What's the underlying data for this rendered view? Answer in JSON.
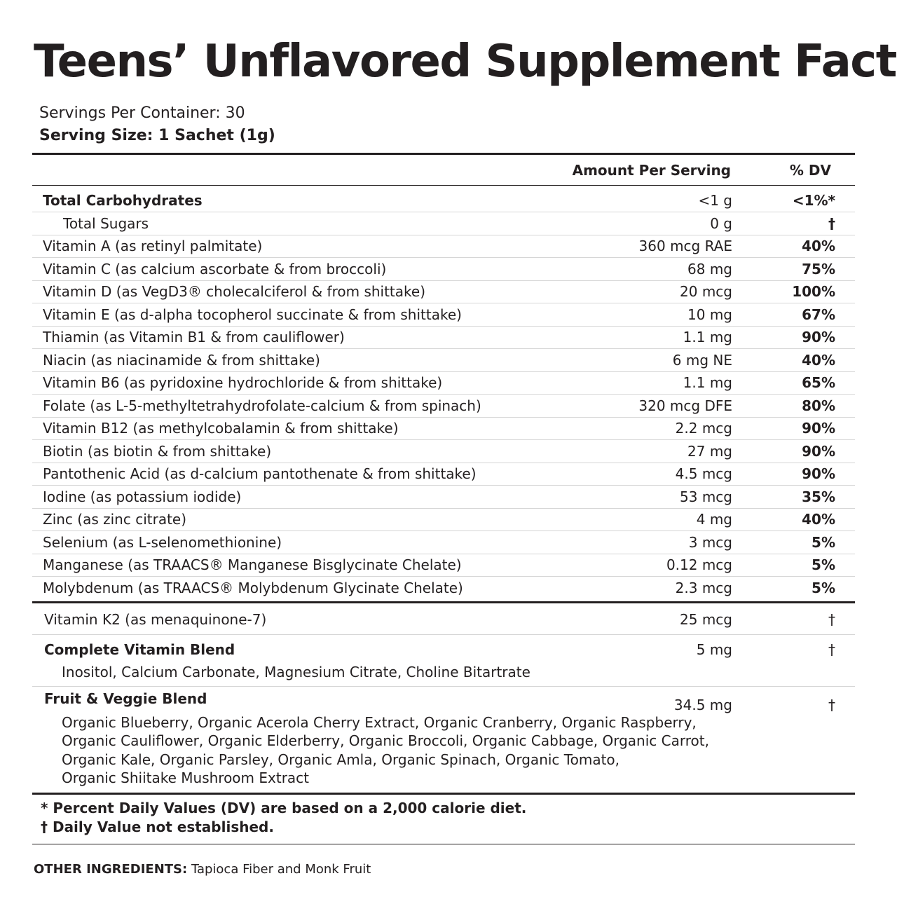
{
  "title": "Teens’ Unflavored Supplement Facts",
  "servings_per_container": "Servings Per Container: 30",
  "serving_size": "Serving Size: 1 Sachet (1g)",
  "headers": {
    "amount": "Amount Per Serving",
    "dv": "% DV"
  },
  "rows": [
    {
      "name": "Total Carbohydrates",
      "amount": "<1 g",
      "dv": "<1%*",
      "style": "bold"
    },
    {
      "name": "Total Sugars",
      "amount": "0 g",
      "dv": "†",
      "style": "sub"
    },
    {
      "name": "Vitamin A (as retinyl palmitate)",
      "amount": "360 mcg RAE",
      "dv": "40%"
    },
    {
      "name": "Vitamin C (as calcium ascorbate & from broccoli)",
      "amount": "68 mg",
      "dv": "75%"
    },
    {
      "name": "Vitamin D (as VegD3® cholecalciferol & from shittake)",
      "amount": "20 mcg",
      "dv": "100%"
    },
    {
      "name": "Vitamin E (as d-alpha tocopherol succinate & from shittake)",
      "amount": "10 mg",
      "dv": "67%"
    },
    {
      "name": "Thiamin (as Vitamin B1 & from cauliflower)",
      "amount": "1.1 mg",
      "dv": "90%"
    },
    {
      "name": "Niacin (as niacinamide & from shittake)",
      "amount": "6 mg NE",
      "dv": "40%"
    },
    {
      "name": "Vitamin B6 (as pyridoxine hydrochloride & from shittake)",
      "amount": "1.1 mg",
      "dv": "65%"
    },
    {
      "name": "Folate (as L-5-methyltetrahydrofolate-calcium & from spinach)",
      "amount": "320 mcg DFE",
      "dv": "80%"
    },
    {
      "name": "Vitamin B12 (as methylcobalamin & from shittake)",
      "amount": "2.2 mcg",
      "dv": "90%"
    },
    {
      "name": "Biotin (as biotin & from shittake)",
      "amount": "27 mg",
      "dv": "90%"
    },
    {
      "name": "Pantothenic Acid (as d-calcium pantothenate & from shittake)",
      "amount": "4.5 mcg",
      "dv": "90%"
    },
    {
      "name": "Iodine (as potassium iodide)",
      "amount": "53 mcg",
      "dv": "35%"
    },
    {
      "name": "Zinc (as zinc citrate)",
      "amount": "4 mg",
      "dv": "40%"
    },
    {
      "name": "Selenium (as L-selenomethionine)",
      "amount": "3 mcg",
      "dv": "5%"
    },
    {
      "name": "Manganese (as TRAACS® Manganese Bisglycinate Chelate)",
      "amount": "0.12 mcg",
      "dv": "5%"
    },
    {
      "name": "Molybdenum (as TRAACS® Molybdenum Glycinate Chelate)",
      "amount": "2.3 mcg",
      "dv": "5%"
    }
  ],
  "vitamin_k2": {
    "name": "Vitamin K2 (as menaquinone-7)",
    "amount": "25 mcg",
    "dv": "†"
  },
  "complete_blend": {
    "name": "Complete Vitamin Blend",
    "amount": "5 mg",
    "dv": "†",
    "ingredients": [
      "Inositol, Calcium Carbonate, Magnesium Citrate, Choline Bitartrate"
    ]
  },
  "fruit_blend": {
    "name": "Fruit & Veggie Blend",
    "amount": "34.5 mg",
    "dv": "†",
    "ingredients": [
      "Organic Blueberry, Organic Acerola Cherry Extract, Organic Cranberry, Organic Raspberry,",
      "Organic Cauliflower, Organic Elderberry, Organic Broccoli, Organic Cabbage, Organic Carrot,",
      "Organic Kale, Organic Parsley, Organic Amla, Organic Spinach, Organic Tomato,",
      "Organic Shiitake Mushroom Extract"
    ]
  },
  "footnotes": [
    "* Percent Daily Values (DV) are based on a 2,000 calorie diet.",
    "† Daily Value not established."
  ],
  "other_ingredients": {
    "label": "OTHER INGREDIENTS:",
    "value": "Tapioca Fiber and Monk Fruit"
  }
}
